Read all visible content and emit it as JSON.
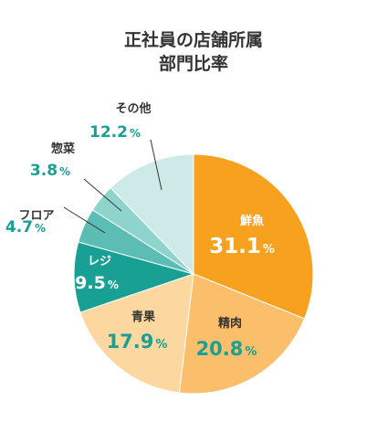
{
  "chart_data": {
    "type": "pie",
    "title_lines": [
      "正社員の店舗所属",
      "部門比率"
    ],
    "unit": "%",
    "slices": [
      {
        "label": "鮮魚",
        "value": 31.1,
        "value_text": "31.1",
        "color": "#F7A11E"
      },
      {
        "label": "精肉",
        "value": 20.8,
        "value_text": "20.8",
        "color": "#FBBE6B"
      },
      {
        "label": "青果",
        "value": 17.9,
        "value_text": "17.9",
        "color": "#FCD79F"
      },
      {
        "label": "レジ",
        "value": 9.5,
        "value_text": "9.5",
        "color": "#17A093"
      },
      {
        "label": "フロア",
        "value": 4.7,
        "value_text": "4.7",
        "color": "#5BBDB3"
      },
      {
        "label": "惣菜",
        "value": 3.8,
        "value_text": "3.8",
        "color": "#8FD3CD"
      },
      {
        "label": "その他",
        "value": 12.2,
        "value_text": "12.2",
        "color": "#CDEAE8"
      }
    ],
    "label_colors": {
      "name_inside": "#ffffff",
      "name_outside": "#333333",
      "value_outside": "#17A093",
      "value_inside_light": "#17A093"
    }
  }
}
